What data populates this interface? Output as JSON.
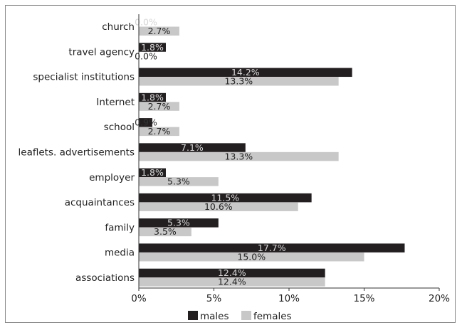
{
  "chart_data": {
    "type": "bar",
    "orientation": "horizontal",
    "categories": [
      "church",
      "travel agency",
      "specialist institutions",
      "Internet",
      "school",
      "leaflets. advertisements",
      "employer",
      "acquaintances",
      "family",
      "media",
      "associations"
    ],
    "series": [
      {
        "name": "males",
        "color": "#231f20",
        "values": [
          0.0,
          1.8,
          14.2,
          1.8,
          0.9,
          7.1,
          1.8,
          11.5,
          5.3,
          17.7,
          12.4
        ],
        "labels": [
          "0.0%",
          "1.8%",
          "14.2%",
          "1.8%",
          "0.9%",
          "7.1%",
          "1.8%",
          "11.5%",
          "5.3%",
          "17.7%",
          "12.4%"
        ]
      },
      {
        "name": "females",
        "color": "#c8c8c8",
        "values": [
          2.7,
          0.0,
          13.3,
          2.7,
          2.7,
          13.3,
          5.3,
          10.6,
          3.5,
          15.0,
          12.4
        ],
        "labels": [
          "2.7%",
          "0.0%",
          "13.3%",
          "2.7%",
          "2.7%",
          "13.3%",
          "5.3%",
          "10.6%",
          "3.5%",
          "15.0%",
          "12.4%"
        ]
      }
    ],
    "xlim": [
      0,
      20
    ],
    "xticks": [
      "0%",
      "5%",
      "10%",
      "15%",
      "20%"
    ],
    "grid": false,
    "legend_position": "bottom"
  }
}
